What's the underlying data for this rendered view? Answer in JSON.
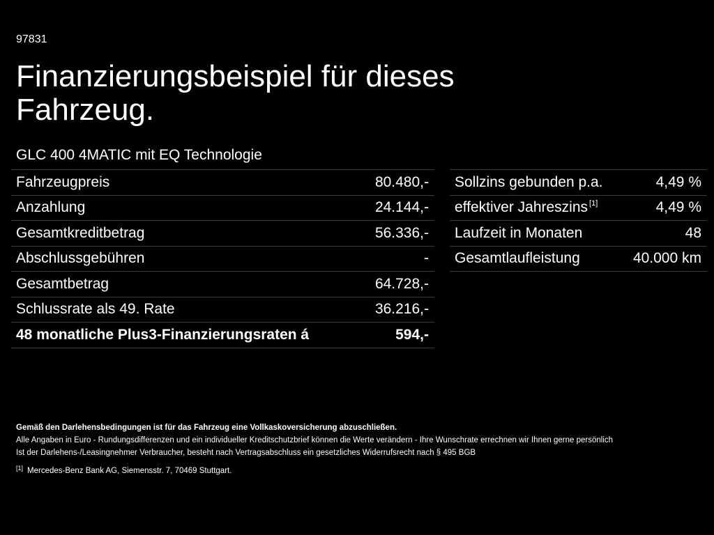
{
  "code": "97831",
  "title": "Finanzierungsbeispiel für dieses Fahrzeug.",
  "model": "GLC 400 4MATIC mit EQ Technologie",
  "left_table": [
    {
      "label": "Fahrzeugpreis",
      "value": "80.480,-"
    },
    {
      "label": "Anzahlung",
      "value": "24.144,-"
    },
    {
      "label": "Gesamtkreditbetrag",
      "value": "56.336,-"
    },
    {
      "label": "Abschlussgebühren",
      "value": "-"
    },
    {
      "label": "Gesamtbetrag",
      "value": "64.728,-"
    },
    {
      "label": "Schlussrate als 49. Rate",
      "value": "36.216,-"
    },
    {
      "label": "48 monatliche Plus3-Finanzierungsraten á",
      "value": "594,-"
    }
  ],
  "right_table": [
    {
      "label": "Sollzins gebunden p.a.",
      "value": "4,49 %"
    },
    {
      "label": "effektiver Jahreszins",
      "sup": "[1]",
      "value": "4,49 %"
    },
    {
      "label": "Laufzeit in Monaten",
      "value": "48"
    },
    {
      "label": "Gesamtlaufleistung",
      "value": "40.000 km"
    }
  ],
  "footer": {
    "bold_note": "Gemäß den Darlehensbedingungen ist für das Fahrzeug eine Vollkaskoversicherung abzuschließen.",
    "line1": "Alle Angaben in Euro - Rundungsdifferenzen und ein individueller Kreditschutzbrief können die Werte verändern - Ihre Wunschrate errechnen wir Ihnen gerne persönlich",
    "line2": "Ist der Darlehens-/Leasingnehmer Verbraucher, besteht nach Vertragsabschluss ein gesetzliches Widerrufsrecht nach § 495 BGB",
    "footnote_mark": "[1]",
    "footnote_text": "Mercedes-Benz Bank AG, Siemensstr. 7, 70469 Stuttgart."
  }
}
